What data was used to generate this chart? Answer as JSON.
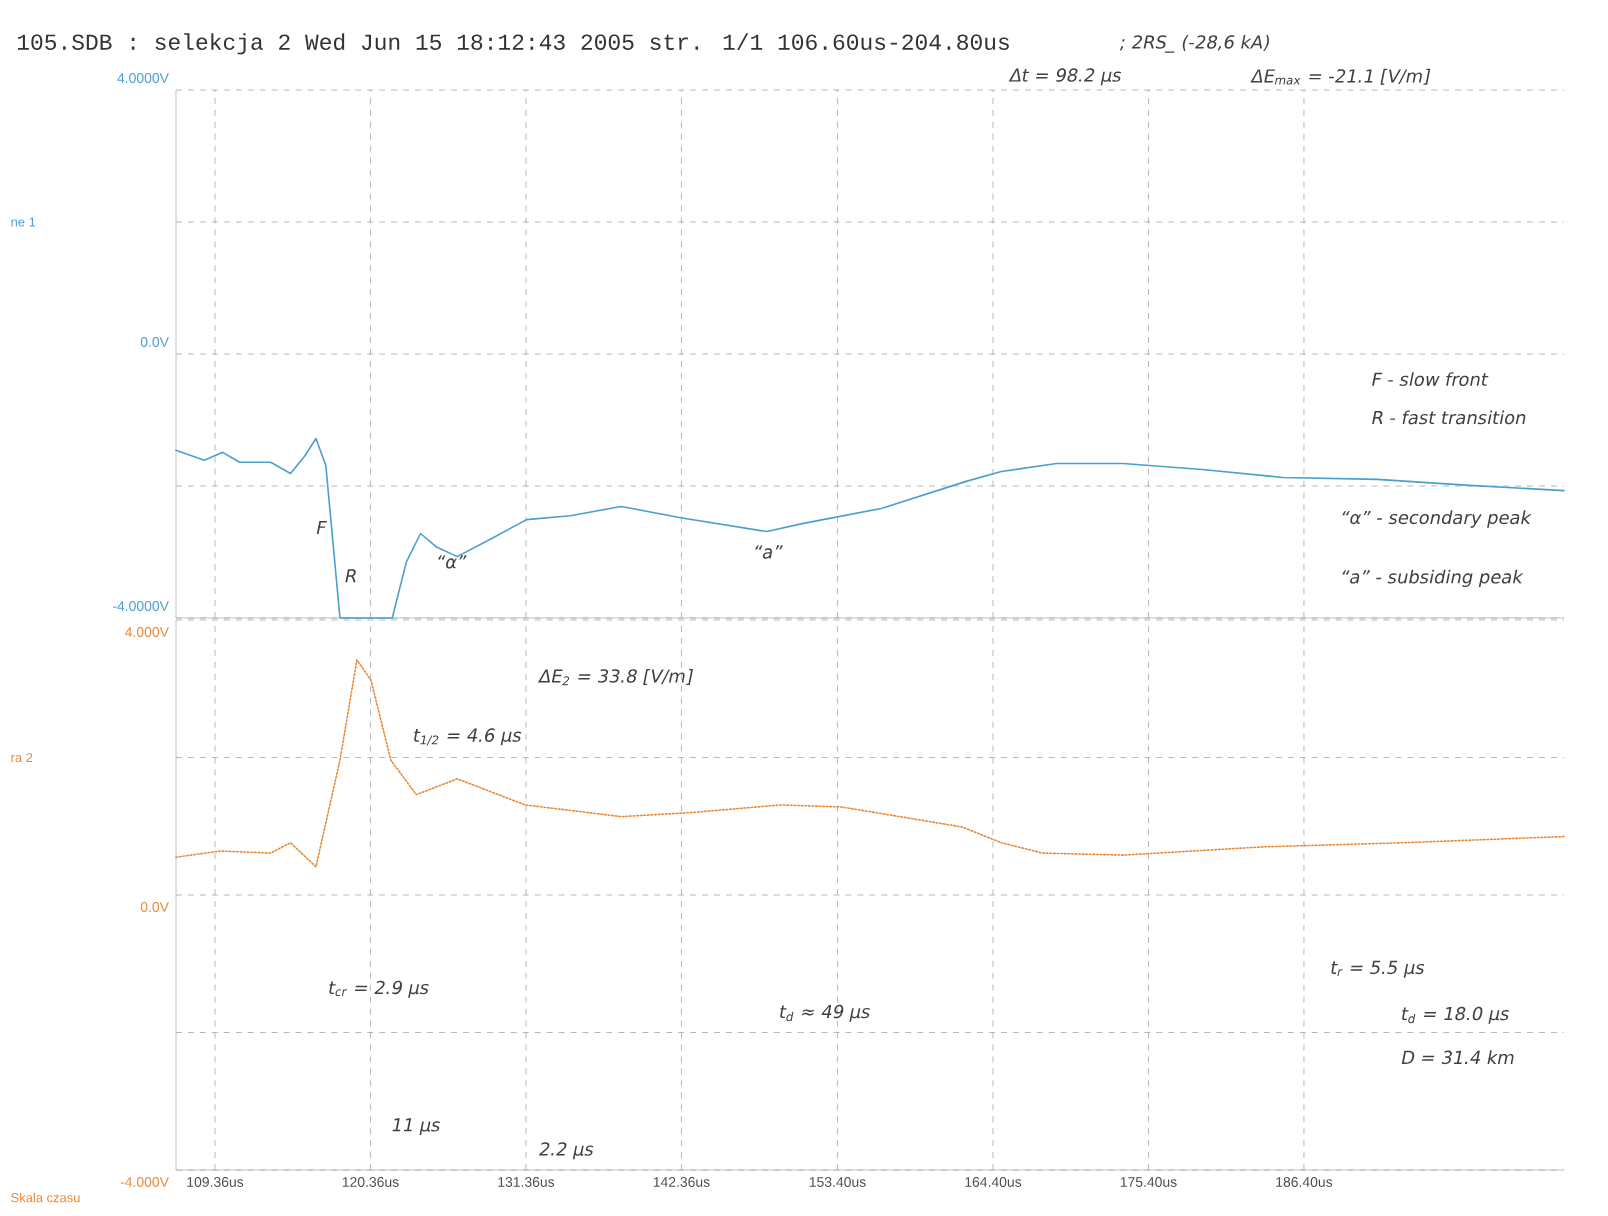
{
  "chart_data": [
    {
      "type": "line",
      "title": "105.SDB : selekcja 2  Wed Jun 15 18:12:43 2005 str. 1/1 106.60us-204.80us",
      "ylabel": "ne 1",
      "x": [
        106.6,
        108.6,
        109.9,
        111.1,
        113.3,
        114.7,
        115.7,
        116.5,
        117.2,
        118.2,
        121.9,
        122.9,
        123.9,
        125.0,
        126.5,
        128.9,
        131.4,
        134.5,
        138.1,
        142.3,
        148.4,
        150.9,
        156.5,
        162.5,
        165.0,
        168.9,
        173.6,
        179.2,
        184.9,
        191.6,
        198.1,
        204.8
      ],
      "series": [
        {
          "color": "#4a9fd0",
          "line_style": "solid",
          "values": [
            -1.46,
            -1.61,
            -1.49,
            -1.64,
            -1.64,
            -1.81,
            -1.55,
            -1.28,
            -1.69,
            -4.0,
            -4.0,
            -3.15,
            -2.72,
            -2.92,
            -3.07,
            -2.8,
            -2.51,
            -2.45,
            -2.31,
            -2.48,
            -2.69,
            -2.57,
            -2.34,
            -1.93,
            -1.78,
            -1.66,
            -1.66,
            -1.75,
            -1.87,
            -1.9,
            -1.99,
            -2.07
          ]
        }
      ],
      "xlim": [
        106.6,
        204.8
      ],
      "xticks": [
        {
          "value": 109.36,
          "label": null
        },
        {
          "value": 120.36,
          "label": null
        },
        {
          "value": 131.36,
          "label": null
        },
        {
          "value": 142.36,
          "label": null
        },
        {
          "value": 153.4,
          "label": null
        },
        {
          "value": 164.4,
          "label": null
        },
        {
          "value": 175.4,
          "label": null
        },
        {
          "value": 186.4,
          "label": null
        }
      ],
      "ylim": [
        -4,
        4
      ],
      "yticks": [
        {
          "value": -4,
          "label": "-4.0000V"
        },
        {
          "value": -2,
          "label": null
        },
        {
          "value": 0,
          "label": "0.0V"
        },
        {
          "value": 2,
          "label": null
        },
        {
          "value": 4,
          "label": "4.0000V"
        }
      ],
      "tick_labels": "y",
      "grid": true,
      "annotations": [
        "; 2RS_ (-28,6 kA)",
        "Δt = 98.2 μs",
        "ΔE$_{max}$ = -21.1 [V/m]",
        "F",
        "R",
        "“α”",
        "“a”",
        "F - slow front",
        "R - fast transition",
        "“α” - secondary peak",
        "“a” - subsiding peak"
      ]
    },
    {
      "type": "line",
      "ylabel": "ra 2",
      "xlabel": "Skala czasu",
      "x": [
        106.6,
        109.7,
        113.3,
        114.7,
        116.5,
        118.2,
        119.4,
        120.4,
        121.8,
        123.6,
        126.5,
        131.3,
        138.1,
        143.1,
        149.4,
        153.7,
        162.2,
        165.0,
        167.9,
        173.6,
        183.5,
        193.4,
        204.8
      ],
      "series": [
        {
          "color": "#e8893a",
          "line_style": "dotted",
          "values": [
            0.55,
            0.64,
            0.61,
            0.76,
            0.41,
            1.96,
            3.42,
            3.12,
            1.96,
            1.46,
            1.69,
            1.31,
            1.14,
            1.2,
            1.31,
            1.28,
            0.99,
            0.76,
            0.61,
            0.58,
            0.7,
            0.76,
            0.85
          ]
        }
      ],
      "xlim": [
        106.6,
        204.8
      ],
      "xticks": [
        {
          "value": 109.36,
          "label": "109.36us"
        },
        {
          "value": 120.36,
          "label": "120.36us"
        },
        {
          "value": 131.36,
          "label": "131.36us"
        },
        {
          "value": 142.36,
          "label": "142.36us"
        },
        {
          "value": 153.4,
          "label": "153.40us"
        },
        {
          "value": 164.4,
          "label": "164.40us"
        },
        {
          "value": 175.4,
          "label": "175.40us"
        },
        {
          "value": 186.4,
          "label": "186.40us"
        }
      ],
      "ylim": [
        -4,
        4
      ],
      "yticks": [
        {
          "value": -4,
          "label": "-4.000V"
        },
        {
          "value": -2,
          "label": null
        },
        {
          "value": 0,
          "label": "0.0V"
        },
        {
          "value": 2,
          "label": null
        },
        {
          "value": 4,
          "label": "4.000V"
        }
      ],
      "grid": true,
      "annotations": [
        "ΔE$_{2}$ = 33.8 [V/m]",
        "t$_{1/2}$ = 4.6 μs",
        "t$_{cr}$ = 2.9 μs",
        "t$_{d}$ ≈ 49 μs",
        "11 μs",
        "2.2 μs",
        "t$_{r}$ = 5.5 μs",
        "t$_{d}$ = 18.0 μs",
        "D = 31.4 km"
      ]
    }
  ]
}
